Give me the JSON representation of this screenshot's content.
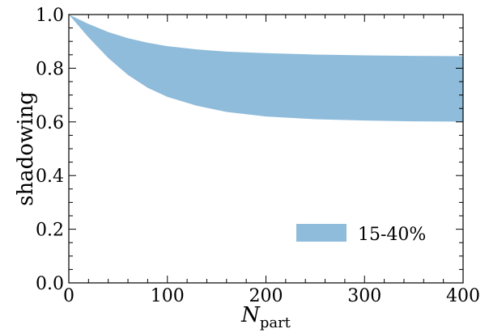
{
  "chart_data": {
    "type": "area",
    "xlabel_main": "N",
    "xlabel_sub": "part",
    "ylabel": "shadowing",
    "xlim": [
      0,
      400
    ],
    "ylim": [
      0.0,
      1.0
    ],
    "x_ticks": [
      "0",
      "100",
      "200",
      "300",
      "400"
    ],
    "y_ticks": [
      "0.0",
      "0.2",
      "0.4",
      "0.6",
      "0.8",
      "1.0"
    ],
    "grid": false,
    "legend_position": "bottom-right",
    "color": "#8fbcdb",
    "series": [
      {
        "name": "15-40%",
        "x": [
          0,
          20,
          40,
          60,
          80,
          100,
          130,
          160,
          200,
          250,
          300,
          350,
          400
        ],
        "upper": [
          1.0,
          0.965,
          0.935,
          0.912,
          0.895,
          0.882,
          0.87,
          0.862,
          0.856,
          0.851,
          0.848,
          0.846,
          0.845
        ],
        "lower": [
          1.0,
          0.915,
          0.838,
          0.775,
          0.727,
          0.693,
          0.66,
          0.637,
          0.62,
          0.61,
          0.605,
          0.602,
          0.601
        ]
      }
    ]
  }
}
